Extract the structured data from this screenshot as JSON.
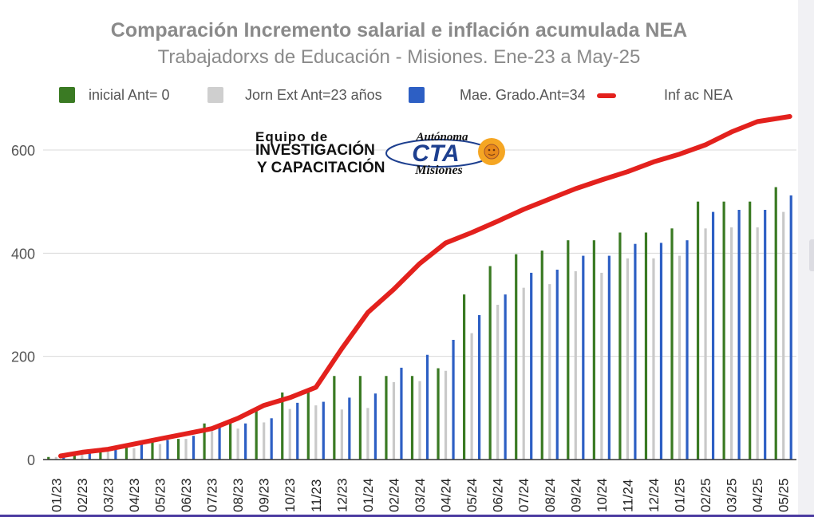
{
  "chart_data": {
    "type": "bar",
    "title": "Comparación Incremento salarial e inflación acumulada NEA",
    "subtitle": "Trabajadorxs de Educación - Misiones. Ene-23 a May-25",
    "xlabel": "",
    "ylabel": "",
    "ylim": [
      0,
      700
    ],
    "yticks": [
      "0",
      "200",
      "400",
      "600"
    ],
    "grid": true,
    "legend_position": "top",
    "categories": [
      "01/23",
      "02/23",
      "03/23",
      "04/23",
      "05/23",
      "06/23",
      "07/23",
      "08/23",
      "09/23",
      "10/23",
      "11/23",
      "12/23",
      "01/24",
      "02/24",
      "03/24",
      "04/24",
      "05/24",
      "06/24",
      "07/24",
      "08/24",
      "09/24",
      "10/24",
      "11/24",
      "12/24",
      "01/25",
      "02/25",
      "03/25",
      "04/25",
      "05/25"
    ],
    "series": [
      {
        "name": "inicial Ant= 0",
        "type": "bar",
        "color": "#3a7a23",
        "values": [
          5,
          12,
          18,
          28,
          35,
          40,
          70,
          72,
          100,
          130,
          130,
          162,
          162,
          162,
          162,
          177,
          320,
          375,
          398,
          405,
          425,
          425,
          440,
          440,
          448,
          500,
          500,
          500,
          528
        ]
      },
      {
        "name": "Jorn Ext Ant=23 años",
        "type": "bar",
        "color": "#c9c9c9",
        "values": [
          5,
          10,
          15,
          22,
          30,
          40,
          55,
          60,
          72,
          98,
          105,
          97,
          100,
          150,
          152,
          172,
          245,
          300,
          333,
          340,
          365,
          362,
          390,
          390,
          395,
          448,
          450,
          450,
          480
        ]
      },
      {
        "name": "Mae. Grado.Ant=34",
        "type": "bar",
        "color": "#2d5fc4",
        "values": [
          7,
          15,
          20,
          30,
          38,
          46,
          65,
          70,
          80,
          110,
          112,
          120,
          128,
          178,
          203,
          232,
          280,
          320,
          362,
          368,
          395,
          395,
          418,
          420,
          425,
          480,
          484,
          484,
          512
        ]
      },
      {
        "name": "Inf ac NEA",
        "type": "line",
        "color": "#e3211d",
        "values": [
          7,
          14,
          20,
          30,
          40,
          50,
          60,
          80,
          105,
          120,
          140,
          215,
          285,
          330,
          380,
          420,
          440,
          462,
          485,
          505,
          525,
          542,
          558,
          577,
          592,
          610,
          635,
          655,
          665
        ]
      }
    ]
  },
  "logo": {
    "line1": "Equipo de",
    "line2": "INVESTIGACIÓN",
    "line3": "Y CAPACITACIÓN",
    "script_top": "Autónoma",
    "mark": "CTA",
    "script_bottom": "Misiones"
  },
  "colors": {
    "text": "#8a8a8a",
    "grid": "#d9d9d9",
    "axis": "#333333",
    "accent_strip": "#4a3aa0"
  }
}
